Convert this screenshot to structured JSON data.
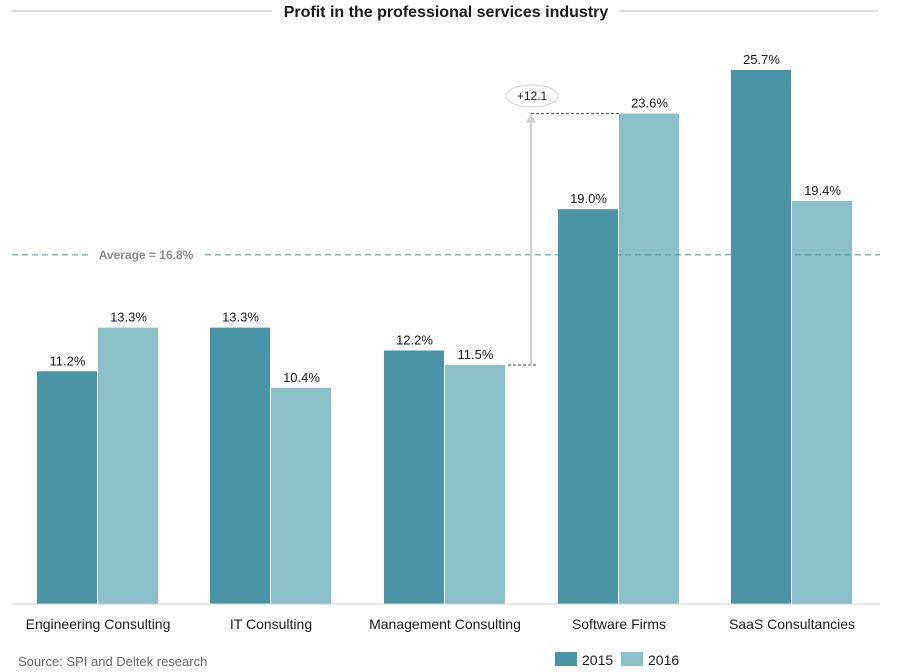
{
  "chart_data": {
    "type": "bar",
    "title": "Profit in the professional services industry",
    "categories": [
      "Engineering Consulting",
      "IT Consulting",
      "Management Consulting",
      "Software Firms",
      "SaaS Consultancies"
    ],
    "series": [
      {
        "name": "2015",
        "values": [
          11.2,
          13.3,
          12.2,
          19.0,
          25.7
        ],
        "labels": [
          "11.2%",
          "13.3%",
          "12.2%",
          "19.0%",
          "25.7%"
        ],
        "color": "#4a95a5"
      },
      {
        "name": "2016",
        "values": [
          13.3,
          10.4,
          11.5,
          23.6,
          19.4
        ],
        "labels": [
          "13.3%",
          "10.4%",
          "11.5%",
          "23.6%",
          "19.4%"
        ],
        "color": "#89c0ca"
      }
    ],
    "average": {
      "value": 16.8,
      "label": "Average = 16.8%"
    },
    "annotation": {
      "label": "+12.1",
      "from_value": 11.5,
      "to_value": 23.6
    },
    "ylim": [
      0,
      27
    ],
    "xlabel": "",
    "ylabel": "",
    "grid": false,
    "legend_position": "bottom-right",
    "source": "Source: SPI and Deltek research"
  },
  "colors": {
    "s2015": "#4a95a5",
    "s2016": "#89c0ca",
    "average_line": "#4a95a5",
    "title_rule": "#bfbfbf",
    "axis": "#d0d0d0",
    "arrow": "#cfcfcf"
  }
}
